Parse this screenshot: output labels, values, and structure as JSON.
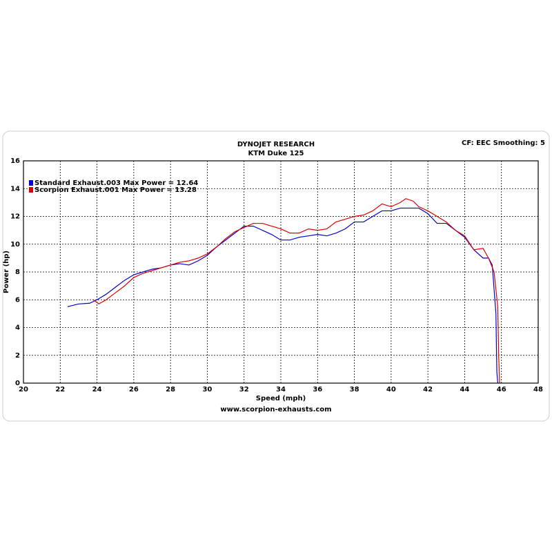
{
  "chart_data": {
    "type": "line",
    "title": "DYNOJET RESEARCH",
    "subtitle": "KTM Duke 125",
    "annotation": "CF: EEC  Smoothing: 5",
    "x_label": "Speed (mph)",
    "y_label": "Power (hp)",
    "footer": "www.scorpion-exhausts.com",
    "xlim": [
      20,
      48
    ],
    "xticks": [
      20,
      22,
      24,
      26,
      28,
      30,
      32,
      34,
      36,
      38,
      40,
      42,
      44,
      46,
      48
    ],
    "ylim": [
      0,
      16
    ],
    "yticks": [
      0,
      2,
      4,
      6,
      8,
      10,
      12,
      14,
      16
    ],
    "grid": true,
    "legend": "upper-left",
    "series": [
      {
        "name": "Standard Exhaust.003 Max Power = 12.64",
        "color": "#0000cc",
        "x": [
          22.4,
          23,
          23.6,
          24,
          24.5,
          25,
          25.5,
          26,
          26.5,
          27,
          27.5,
          28,
          28.5,
          29,
          29.5,
          30,
          30.5,
          31,
          31.5,
          32,
          32.5,
          33,
          33.5,
          34,
          34.5,
          35,
          35.5,
          36,
          36.5,
          37,
          37.5,
          38,
          38.5,
          39,
          39.5,
          40,
          40.5,
          41,
          41.5,
          42,
          42.5,
          43,
          43.5,
          44,
          44.5,
          45,
          45.3,
          45.5,
          45.7,
          45.75,
          45.8
        ],
        "values": [
          5.5,
          5.7,
          5.75,
          6.0,
          6.4,
          6.9,
          7.4,
          7.8,
          8.0,
          8.2,
          8.3,
          8.5,
          8.6,
          8.5,
          8.8,
          9.2,
          9.8,
          10.3,
          10.8,
          11.3,
          11.3,
          11.0,
          10.7,
          10.3,
          10.3,
          10.5,
          10.6,
          10.7,
          10.6,
          10.8,
          11.1,
          11.6,
          11.6,
          12.0,
          12.4,
          12.4,
          12.6,
          12.6,
          12.6,
          12.2,
          11.5,
          11.5,
          11.0,
          10.5,
          9.6,
          9.0,
          9.0,
          8.5,
          5.0,
          0.8,
          0.0
        ]
      },
      {
        "name": "Scorpion Exhaust.001 Max Power = 13.28",
        "color": "#dd0000",
        "x": [
          23.8,
          24.1,
          24.5,
          25,
          25.5,
          26,
          26.5,
          27,
          27.5,
          28,
          28.5,
          29,
          29.5,
          30,
          30.5,
          31,
          31.5,
          32,
          32.5,
          33,
          33.5,
          34,
          34.5,
          35,
          35.5,
          36,
          36.5,
          37,
          37.5,
          38,
          38.5,
          39,
          39.5,
          40,
          40.5,
          40.8,
          41.2,
          41.5,
          42,
          42.5,
          43,
          43.5,
          44,
          44.5,
          45,
          45.3,
          45.6,
          45.8,
          45.85,
          45.9
        ],
        "values": [
          6.0,
          5.7,
          6.0,
          6.5,
          7.0,
          7.6,
          7.9,
          8.1,
          8.3,
          8.5,
          8.7,
          8.8,
          9.0,
          9.3,
          9.8,
          10.4,
          10.9,
          11.2,
          11.5,
          11.5,
          11.3,
          11.1,
          10.8,
          10.8,
          11.1,
          11.0,
          11.1,
          11.6,
          11.8,
          12.0,
          12.1,
          12.4,
          12.9,
          12.7,
          13.0,
          13.28,
          13.1,
          12.7,
          12.4,
          12.0,
          11.6,
          11.0,
          10.6,
          9.6,
          9.7,
          9.0,
          8.0,
          5.5,
          2.0,
          0.0
        ]
      }
    ]
  }
}
